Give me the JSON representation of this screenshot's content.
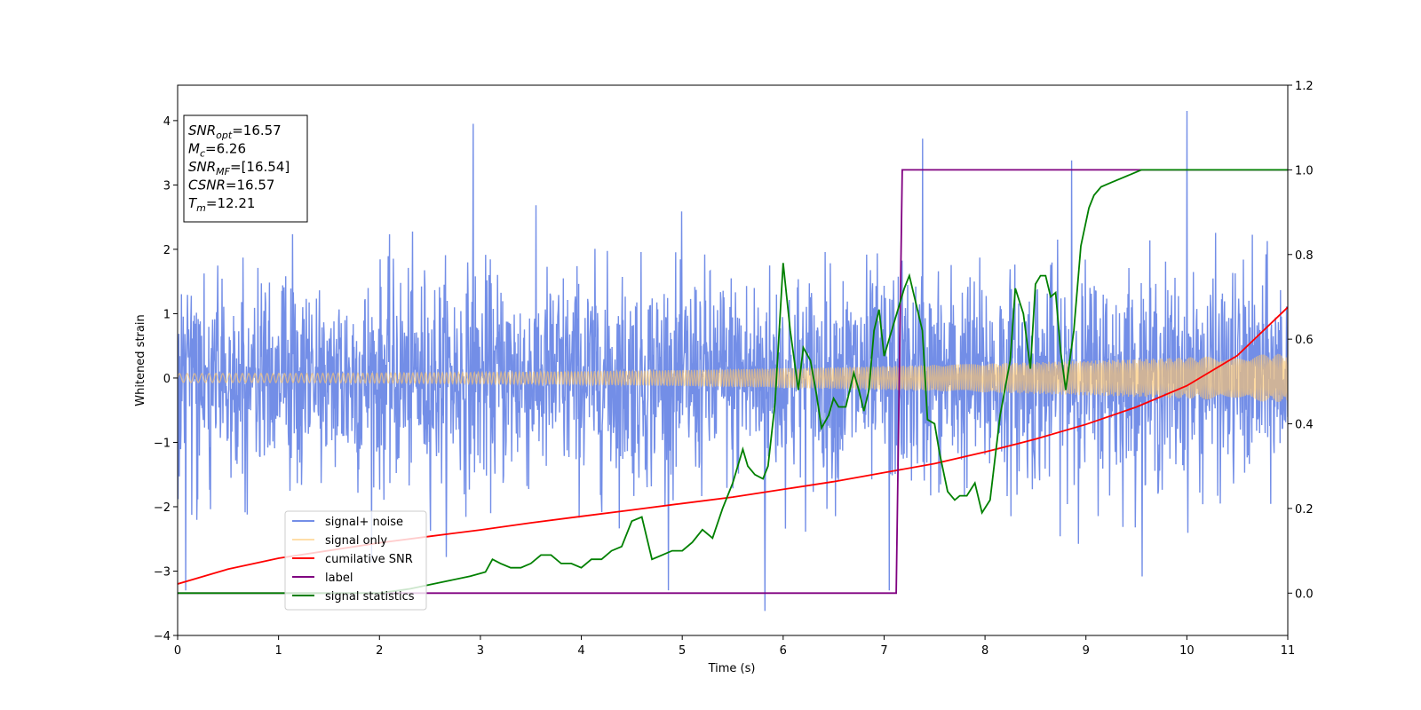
{
  "chart_data": {
    "type": "line",
    "title": "",
    "xlabel": "Time (s)",
    "ylabel": "Whitened strain",
    "xlim": [
      0,
      11
    ],
    "ylim": [
      -4,
      4.55
    ],
    "y2lim": [
      -0.1,
      1.2
    ],
    "x_ticks": [
      0,
      1,
      2,
      3,
      4,
      5,
      6,
      7,
      8,
      9,
      10,
      11
    ],
    "x_tick_labels": [
      "0",
      "1",
      "2",
      "3",
      "4",
      "5",
      "6",
      "7",
      "8",
      "9",
      "10",
      "11"
    ],
    "y_ticks": [
      -4,
      -3,
      -2,
      -1,
      0,
      1,
      2,
      3,
      4
    ],
    "y_tick_labels": [
      "−4",
      "−3",
      "−2",
      "−1",
      "0",
      "1",
      "2",
      "3",
      "4"
    ],
    "y2_ticks": [
      0.0,
      0.2,
      0.4,
      0.6,
      0.8,
      1.0,
      1.2
    ],
    "y2_tick_labels": [
      "0.0",
      "0.2",
      "0.4",
      "0.6",
      "0.8",
      "1.0",
      "1.2"
    ],
    "grid": false,
    "legend_position": "lower-left",
    "series": [
      {
        "name": "signal+ noise",
        "axis": "left",
        "color": "#6b88e6",
        "kind": "noise",
        "typical_range": [
          -1.9,
          1.9
        ],
        "extreme_range": [
          -3.6,
          4.15
        ],
        "notable_peaks": [
          [
            2.93,
            3.95
          ],
          [
            7.38,
            3.72
          ],
          [
            8.86,
            3.38
          ],
          [
            10.0,
            4.15
          ]
        ],
        "notable_troughs": [
          [
            5.82,
            -3.62
          ],
          [
            0.08,
            -3.3
          ],
          [
            7.05,
            -3.3
          ]
        ]
      },
      {
        "name": "signal only",
        "axis": "left",
        "color": "#ffc86e",
        "kind": "chirp",
        "amplitude_start": 0.07,
        "amplitude_end": 0.38
      },
      {
        "name": "cumilative SNR",
        "axis": "left",
        "color": "#ff0000",
        "x": [
          0,
          0.5,
          1,
          1.5,
          2,
          2.5,
          3,
          3.5,
          4,
          4.5,
          5,
          5.5,
          6,
          6.5,
          7,
          7.5,
          8,
          8.5,
          9,
          9.5,
          10,
          10.5,
          11
        ],
        "values": [
          -3.2,
          -2.97,
          -2.8,
          -2.68,
          -2.56,
          -2.46,
          -2.36,
          -2.25,
          -2.15,
          -2.05,
          -1.95,
          -1.85,
          -1.73,
          -1.61,
          -1.47,
          -1.33,
          -1.15,
          -0.95,
          -0.72,
          -0.45,
          -0.12,
          0.35,
          1.1
        ]
      },
      {
        "name": "label",
        "axis": "right",
        "color": "#800080",
        "x": [
          0,
          7.12,
          7.18,
          11
        ],
        "values": [
          0,
          0,
          1,
          1
        ]
      },
      {
        "name": "signal statistics",
        "axis": "right",
        "color": "#008000",
        "x": [
          0,
          0.5,
          1,
          1.5,
          2,
          2.3,
          2.5,
          2.7,
          2.9,
          3.05,
          3.12,
          3.2,
          3.3,
          3.4,
          3.5,
          3.6,
          3.7,
          3.8,
          3.9,
          4.0,
          4.1,
          4.2,
          4.3,
          4.4,
          4.5,
          4.6,
          4.7,
          4.8,
          4.9,
          5.0,
          5.1,
          5.2,
          5.3,
          5.4,
          5.5,
          5.6,
          5.65,
          5.72,
          5.8,
          5.85,
          5.92,
          6.0,
          6.07,
          6.15,
          6.2,
          6.27,
          6.33,
          6.38,
          6.45,
          6.5,
          6.55,
          6.62,
          6.7,
          6.75,
          6.8,
          6.85,
          6.9,
          6.95,
          7.0,
          7.05,
          7.1,
          7.2,
          7.25,
          7.38,
          7.43,
          7.5,
          7.55,
          7.63,
          7.7,
          7.75,
          7.82,
          7.9,
          7.97,
          8.05,
          8.15,
          8.25,
          8.3,
          8.38,
          8.45,
          8.5,
          8.55,
          8.6,
          8.65,
          8.7,
          8.75,
          8.8,
          8.88,
          8.95,
          9.03,
          9.08,
          9.15,
          9.25,
          9.35,
          9.45,
          9.55,
          9.65,
          9.8,
          10,
          10.5,
          11
        ],
        "values": [
          0,
          0,
          0,
          0,
          0,
          0.01,
          0.02,
          0.03,
          0.04,
          0.05,
          0.08,
          0.07,
          0.06,
          0.06,
          0.07,
          0.09,
          0.09,
          0.07,
          0.07,
          0.06,
          0.08,
          0.08,
          0.1,
          0.11,
          0.17,
          0.18,
          0.08,
          0.09,
          0.1,
          0.1,
          0.12,
          0.15,
          0.13,
          0.2,
          0.26,
          0.34,
          0.3,
          0.28,
          0.27,
          0.3,
          0.45,
          0.78,
          0.62,
          0.48,
          0.58,
          0.55,
          0.47,
          0.39,
          0.42,
          0.46,
          0.44,
          0.44,
          0.52,
          0.48,
          0.43,
          0.48,
          0.62,
          0.67,
          0.56,
          0.6,
          0.64,
          0.72,
          0.75,
          0.62,
          0.41,
          0.4,
          0.33,
          0.24,
          0.22,
          0.23,
          0.23,
          0.26,
          0.19,
          0.22,
          0.42,
          0.55,
          0.72,
          0.66,
          0.53,
          0.73,
          0.75,
          0.75,
          0.7,
          0.71,
          0.57,
          0.48,
          0.62,
          0.82,
          0.91,
          0.94,
          0.96,
          0.97,
          0.98,
          0.99,
          1.0,
          1.0,
          1.0,
          1.0,
          1.0,
          1.0
        ]
      }
    ],
    "annotation": {
      "lines": [
        {
          "main": "SNR",
          "sub": "opt",
          "value": "=16.57"
        },
        {
          "main": "M",
          "sub": "c",
          "value": "=6.26"
        },
        {
          "main": "SNR",
          "sub": "MF",
          "value": "=[16.54]"
        },
        {
          "main": "CSNR",
          "sub": "",
          "value": "=16.57"
        },
        {
          "main": "T",
          "sub": "m",
          "value": "=12.21"
        }
      ]
    }
  }
}
